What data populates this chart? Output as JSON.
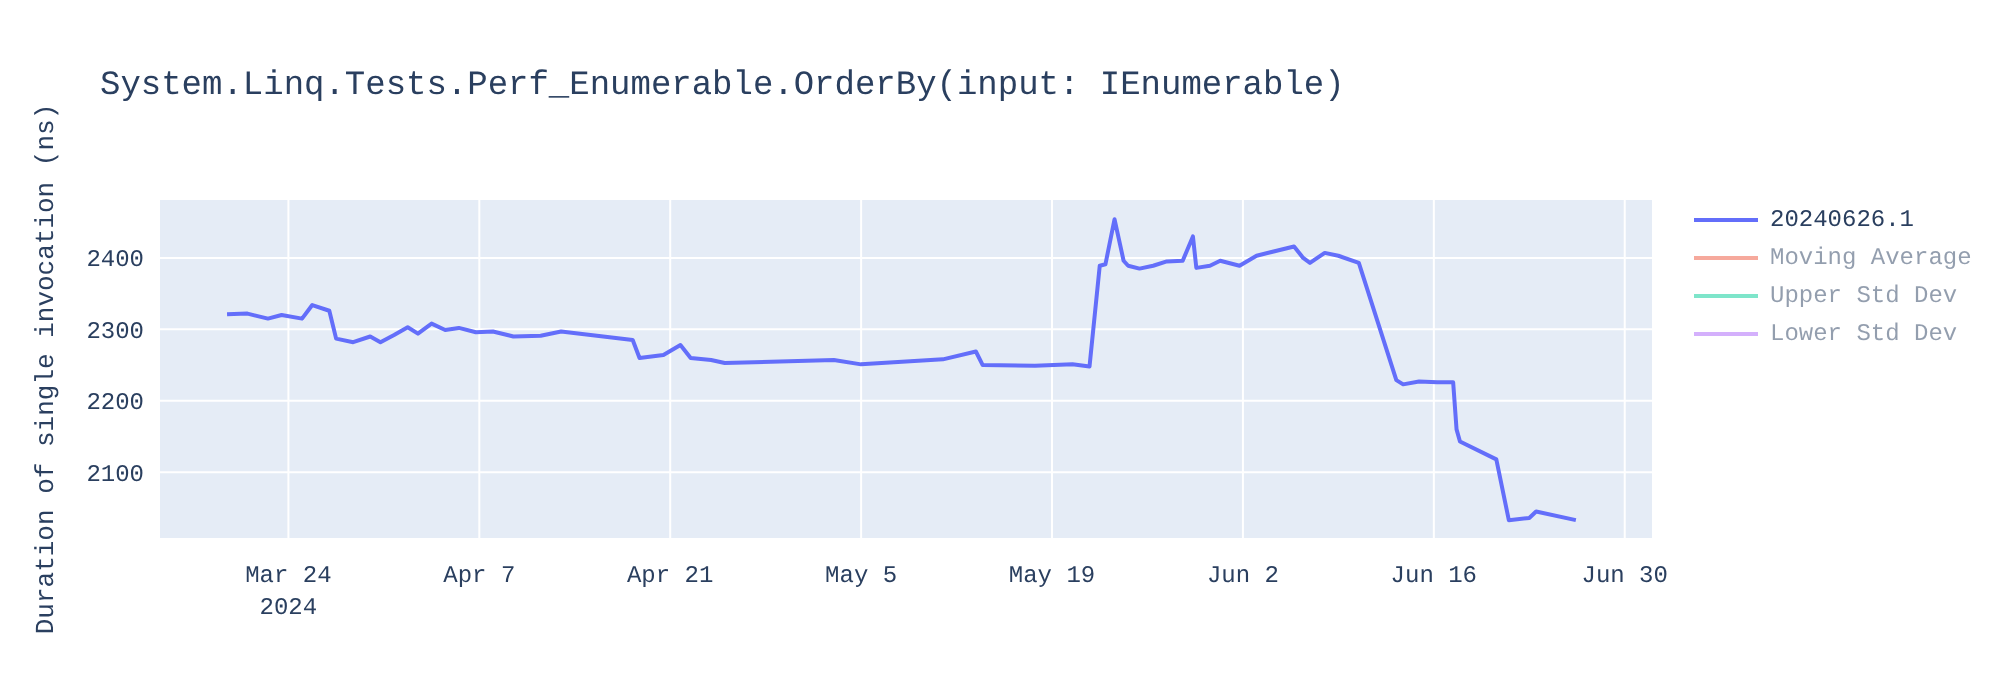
{
  "chart_data": {
    "type": "line",
    "title": "System.Linq.Tests.Perf_Enumerable.OrderBy(input: IEnumerable)",
    "ylabel": "Duration of single invocation (ns)",
    "x": [
      "2024-03-19T12:00",
      "2024-03-21",
      "2024-03-22T12:00",
      "2024-03-23T12:00",
      "2024-03-25",
      "2024-03-25T18:00",
      "2024-03-27",
      "2024-03-27T12:00",
      "2024-03-28T18:00",
      "2024-03-30",
      "2024-03-30T18:00",
      "2024-03-31T18:00",
      "2024-04-01T18:00",
      "2024-04-02T12:00",
      "2024-04-03T12:00",
      "2024-04-04T12:00",
      "2024-04-05T12:00",
      "2024-04-06T18:00",
      "2024-04-08",
      "2024-04-09T12:00",
      "2024-04-11T12:00",
      "2024-04-13",
      "2024-04-18T06:00",
      "2024-04-18T18:00",
      "2024-04-20T12:00",
      "2024-04-21T18:00",
      "2024-04-22T12:00",
      "2024-04-24",
      "2024-04-25",
      "2024-05-03",
      "2024-05-05",
      "2024-05-11",
      "2024-05-13T10:00",
      "2024-05-13T22:00",
      "2024-05-17T18:00",
      "2024-05-20T12:00",
      "2024-05-21T18:00",
      "2024-05-22T12:00",
      "2024-05-22T22:00",
      "2024-05-23T14:00",
      "2024-05-24T06:00",
      "2024-05-24T14:00",
      "2024-05-25T10:00",
      "2024-05-26T10:00",
      "2024-05-27T10:00",
      "2024-05-28T14:00",
      "2024-05-29T08:00",
      "2024-05-29T14:00",
      "2024-05-30T14:00",
      "2024-05-31T08:00",
      "2024-06-01T18:00",
      "2024-06-03",
      "2024-06-05T18:00",
      "2024-06-06T10:00",
      "2024-06-06T22:00",
      "2024-06-08",
      "2024-06-09",
      "2024-06-10T12:00",
      "2024-06-13T06:00",
      "2024-06-13T18:00",
      "2024-06-14T22:00",
      "2024-06-16T06:00",
      "2024-06-17T10:00",
      "2024-06-17T16:00",
      "2024-06-17T22:00",
      "2024-06-20T14:00",
      "2024-06-21T12:00",
      "2024-06-23",
      "2024-06-23T12:00",
      "2024-06-26T10:00"
    ],
    "series": [
      {
        "name": "20240626.1",
        "color": "#636efa",
        "values": [
          2321,
          2322,
          2315,
          2320,
          2315,
          2334,
          2326,
          2287,
          2282,
          2290,
          2282,
          2292,
          2303,
          2294,
          2308,
          2299,
          2302,
          2296,
          2297,
          2290,
          2291,
          2297,
          2285,
          2260,
          2264,
          2278,
          2260,
          2257,
          2253,
          2257,
          2251,
          2258,
          2269,
          2250,
          2249,
          2251,
          2248,
          2389,
          2391,
          2454,
          2396,
          2389,
          2385,
          2389,
          2395,
          2396,
          2430,
          2386,
          2389,
          2396,
          2389,
          2403,
          2416,
          2400,
          2393,
          2407,
          2403,
          2393,
          2229,
          2223,
          2227,
          2226,
          2226,
          2160,
          2143,
          2118,
          2033,
          2036,
          2045,
          2033
        ]
      },
      {
        "name": "Moving Average",
        "color": "#ef553b",
        "values": [
          null,
          null,
          null,
          null,
          null,
          null,
          null,
          null,
          null,
          null,
          null,
          null,
          null,
          null,
          null,
          null,
          null,
          null,
          null,
          null,
          null,
          null,
          null,
          null,
          null,
          null,
          null,
          null,
          null,
          null,
          null,
          null,
          null,
          null,
          null,
          null,
          null,
          null,
          null,
          null,
          null,
          null,
          null,
          null,
          null,
          null,
          null,
          null,
          null,
          null,
          null,
          null,
          null,
          null,
          null,
          null,
          null,
          null,
          null,
          null,
          null,
          null,
          null,
          null,
          null,
          null,
          null,
          null,
          null,
          null
        ]
      },
      {
        "name": "Upper Std Dev",
        "color": "#00cc96",
        "values": [
          null,
          null,
          null,
          null,
          null,
          null,
          null,
          null,
          null,
          null,
          null,
          null,
          null,
          null,
          null,
          null,
          null,
          null,
          null,
          null,
          null,
          null,
          null,
          null,
          null,
          null,
          null,
          null,
          null,
          null,
          null,
          null,
          null,
          null,
          null,
          null,
          null,
          null,
          null,
          null,
          null,
          null,
          null,
          null,
          null,
          null,
          null,
          null,
          null,
          null,
          null,
          null,
          null,
          null,
          null,
          null,
          null,
          null,
          null,
          null,
          null,
          null,
          null,
          null,
          null,
          null,
          null,
          null,
          null,
          null
        ]
      },
      {
        "name": "Lower Std Dev",
        "color": "#ab63fa",
        "values": [
          null,
          null,
          null,
          null,
          null,
          null,
          null,
          null,
          null,
          null,
          null,
          null,
          null,
          null,
          null,
          null,
          null,
          null,
          null,
          null,
          null,
          null,
          null,
          null,
          null,
          null,
          null,
          null,
          null,
          null,
          null,
          null,
          null,
          null,
          null,
          null,
          null,
          null,
          null,
          null,
          null,
          null,
          null,
          null,
          null,
          null,
          null,
          null,
          null,
          null,
          null,
          null,
          null,
          null,
          null,
          null,
          null,
          null,
          null,
          null,
          null,
          null,
          null,
          null,
          null,
          null,
          null,
          null,
          null,
          null
        ]
      }
    ],
    "xlim": [
      "2024-03-14T14:00",
      "2024-07-02"
    ],
    "xticks": [
      {
        "value": "2024-03-24",
        "label": "Mar 24\n2024"
      },
      {
        "value": "2024-04-07",
        "label": "Apr 7"
      },
      {
        "value": "2024-04-21",
        "label": "Apr 21"
      },
      {
        "value": "2024-05-05",
        "label": "May 5"
      },
      {
        "value": "2024-05-19",
        "label": "May 19"
      },
      {
        "value": "2024-06-02",
        "label": "Jun 2"
      },
      {
        "value": "2024-06-16",
        "label": "Jun 16"
      },
      {
        "value": "2024-06-30",
        "label": "Jun 30"
      }
    ],
    "ylim": [
      2008,
      2481
    ],
    "yticks": [
      2100,
      2200,
      2300,
      2400
    ],
    "grid": true,
    "legend": "top right"
  }
}
